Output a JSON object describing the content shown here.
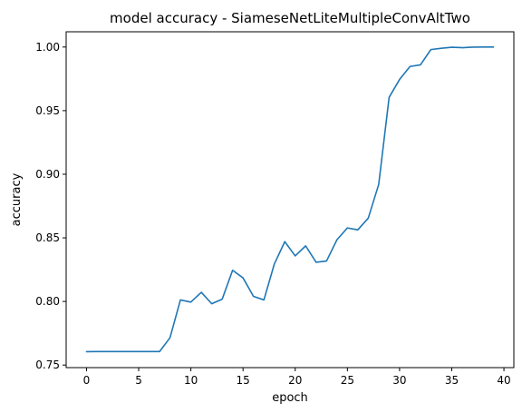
{
  "chart_data": {
    "type": "line",
    "title": "model accuracy - SiameseNetLiteMultipleConvAltTwo",
    "xlabel": "epoch",
    "ylabel": "accuracy",
    "xlim": [
      -1.95,
      40.95
    ],
    "ylim": [
      0.748,
      1.012
    ],
    "xticks": [
      0,
      5,
      10,
      15,
      20,
      25,
      30,
      35,
      40
    ],
    "yticks": [
      0.75,
      0.8,
      0.85,
      0.9,
      0.95,
      1.0
    ],
    "ytick_labels": [
      "0.75",
      "0.80",
      "0.85",
      "0.90",
      "0.95",
      "1.00"
    ],
    "grid": false,
    "series": [
      {
        "color": "#1f77b4",
        "x": [
          0,
          1,
          2,
          3,
          4,
          5,
          6,
          7,
          8,
          9,
          10,
          11,
          12,
          13,
          14,
          15,
          16,
          17,
          18,
          19,
          20,
          21,
          22,
          23,
          24,
          25,
          26,
          27,
          28,
          29,
          30,
          31,
          32,
          33,
          34,
          35,
          36,
          37,
          38,
          39
        ],
        "y": [
          0.7605,
          0.7606,
          0.7606,
          0.7606,
          0.7606,
          0.7606,
          0.7606,
          0.7606,
          0.7715,
          0.8012,
          0.7995,
          0.8072,
          0.7982,
          0.8018,
          0.8245,
          0.8185,
          0.804,
          0.8012,
          0.8295,
          0.847,
          0.8358,
          0.8437,
          0.8308,
          0.8318,
          0.8485,
          0.8578,
          0.8563,
          0.8655,
          0.892,
          0.9605,
          0.9745,
          0.9847,
          0.986,
          0.998,
          0.999,
          0.9998,
          0.9995,
          0.9999,
          1.0,
          1.0
        ]
      }
    ]
  }
}
